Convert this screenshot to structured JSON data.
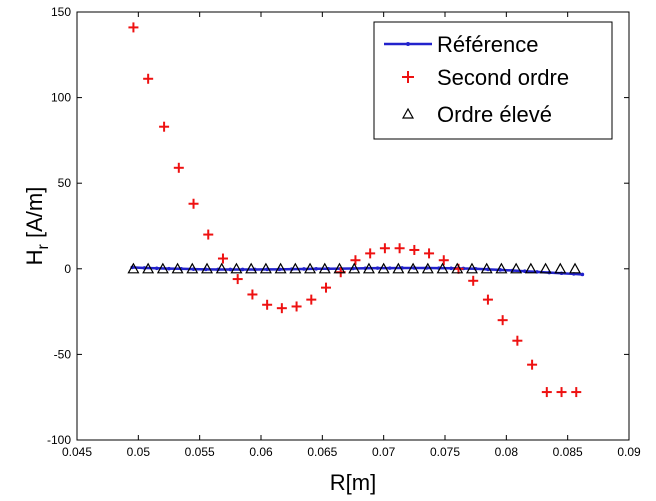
{
  "chart_data": {
    "type": "line",
    "xlabel": "R[m]",
    "ylabel_main": "H",
    "ylabel_sub": "r",
    "ylabel_unit": " [A/m]",
    "xlim": [
      0.045,
      0.09
    ],
    "ylim": [
      -100,
      150
    ],
    "xticks": [
      0.045,
      0.05,
      0.055,
      0.06,
      0.065,
      0.07,
      0.075,
      0.08,
      0.085,
      0.09
    ],
    "xtick_labels": [
      "0.045",
      "0.05",
      "0.055",
      "0.06",
      "0.065",
      "0.07",
      "0.075",
      "0.08",
      "0.085",
      "0.09"
    ],
    "yticks": [
      -100,
      -50,
      0,
      50,
      100,
      150
    ],
    "ytick_labels": [
      "-100",
      "-50",
      "0",
      "50",
      "100",
      "150"
    ],
    "grid": false,
    "legend_position": "top-right",
    "series": [
      {
        "name": "Référence",
        "style": "line-dot",
        "color": "#2222cc",
        "x": [
          0.0495,
          0.0505,
          0.0515,
          0.0525,
          0.0535,
          0.0545,
          0.0555,
          0.0565,
          0.0575,
          0.0585,
          0.0595,
          0.0605,
          0.0615,
          0.0625,
          0.0635,
          0.0645,
          0.0655,
          0.0665,
          0.0675,
          0.0685,
          0.0695,
          0.0705,
          0.0715,
          0.0725,
          0.0735,
          0.0745,
          0.0755,
          0.0765,
          0.0775,
          0.0785,
          0.0795,
          0.0805,
          0.0815,
          0.0825,
          0.0835,
          0.0845,
          0.0855,
          0.0862
        ],
        "y": [
          0.8,
          0.5,
          0.3,
          0.1,
          0,
          -0.2,
          -0.3,
          -0.4,
          -0.4,
          -0.4,
          -0.4,
          -0.3,
          -0.3,
          -0.2,
          -0.1,
          0,
          0,
          0.1,
          0.2,
          0.3,
          0.4,
          0.4,
          0.5,
          0.5,
          0.5,
          0.4,
          0.3,
          0.2,
          0,
          -0.3,
          -0.6,
          -1.0,
          -1.4,
          -1.8,
          -2.2,
          -2.6,
          -3.0,
          -3.3
        ]
      },
      {
        "name": "Second ordre",
        "style": "plus",
        "color": "#ee1111",
        "x": [
          0.0496,
          0.0508,
          0.0521,
          0.0533,
          0.0545,
          0.0557,
          0.0569,
          0.0581,
          0.0593,
          0.0605,
          0.0617,
          0.0629,
          0.0641,
          0.0653,
          0.0665,
          0.0677,
          0.0689,
          0.0701,
          0.0713,
          0.0725,
          0.0737,
          0.0749,
          0.0761,
          0.0773,
          0.0785,
          0.0797,
          0.0809,
          0.0821,
          0.0833,
          0.0845,
          0.0857
        ],
        "y": [
          141,
          111,
          83,
          59,
          38,
          20,
          6,
          -6,
          -15,
          -21,
          -23,
          -22,
          -18,
          -11,
          -2,
          5,
          9,
          12,
          12,
          11,
          9,
          5,
          0,
          -7,
          -18,
          -30,
          -42,
          -56,
          -72,
          -72,
          -72
        ]
      },
      {
        "name": "Ordre élevé",
        "style": "triangle",
        "color": "#000000",
        "x": [
          0.0496,
          0.0508,
          0.052,
          0.0532,
          0.0544,
          0.0556,
          0.0568,
          0.058,
          0.0592,
          0.0604,
          0.0616,
          0.0628,
          0.064,
          0.0652,
          0.0664,
          0.0676,
          0.0688,
          0.07,
          0.0712,
          0.0724,
          0.0736,
          0.0748,
          0.076,
          0.0772,
          0.0784,
          0.0796,
          0.0808,
          0.082,
          0.0832,
          0.0844,
          0.0856
        ],
        "y": [
          0,
          0,
          0,
          0,
          0,
          0,
          0,
          0,
          0,
          0,
          0,
          0,
          0,
          0,
          0,
          0,
          0,
          0,
          0,
          0,
          0,
          0,
          0,
          0,
          0,
          0,
          0,
          0,
          0,
          0,
          0
        ]
      }
    ]
  }
}
